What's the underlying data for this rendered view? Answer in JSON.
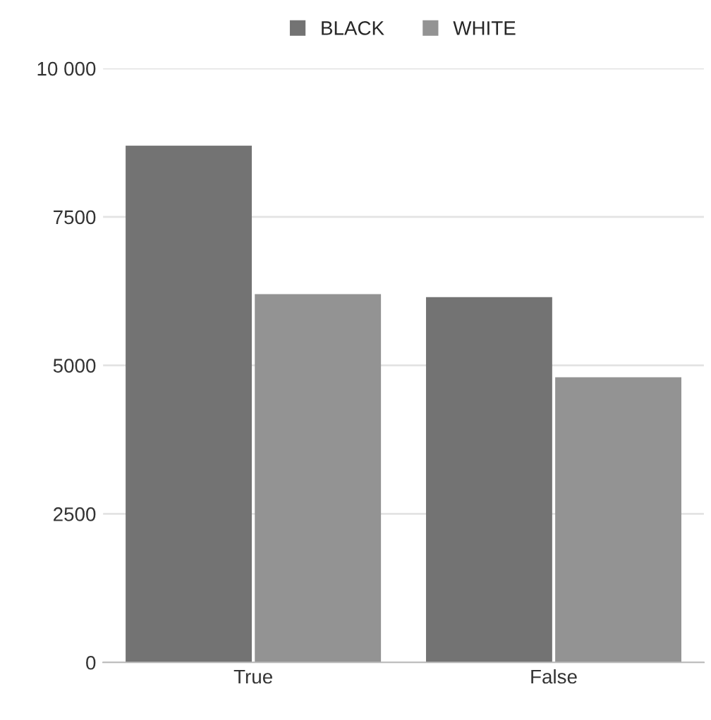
{
  "chart_data": {
    "type": "bar",
    "categories": [
      "True",
      "False"
    ],
    "series": [
      {
        "name": "BLACK",
        "color": "#737373",
        "values": [
          8700,
          6150
        ]
      },
      {
        "name": "WHITE",
        "color": "#939393",
        "values": [
          6200,
          4800
        ]
      }
    ],
    "ylim": [
      0,
      10000
    ],
    "yticks": [
      0,
      2500,
      5000,
      7500,
      {
        "value": 10000,
        "label": "10 000"
      }
    ],
    "grid": "y",
    "legend": "top"
  }
}
